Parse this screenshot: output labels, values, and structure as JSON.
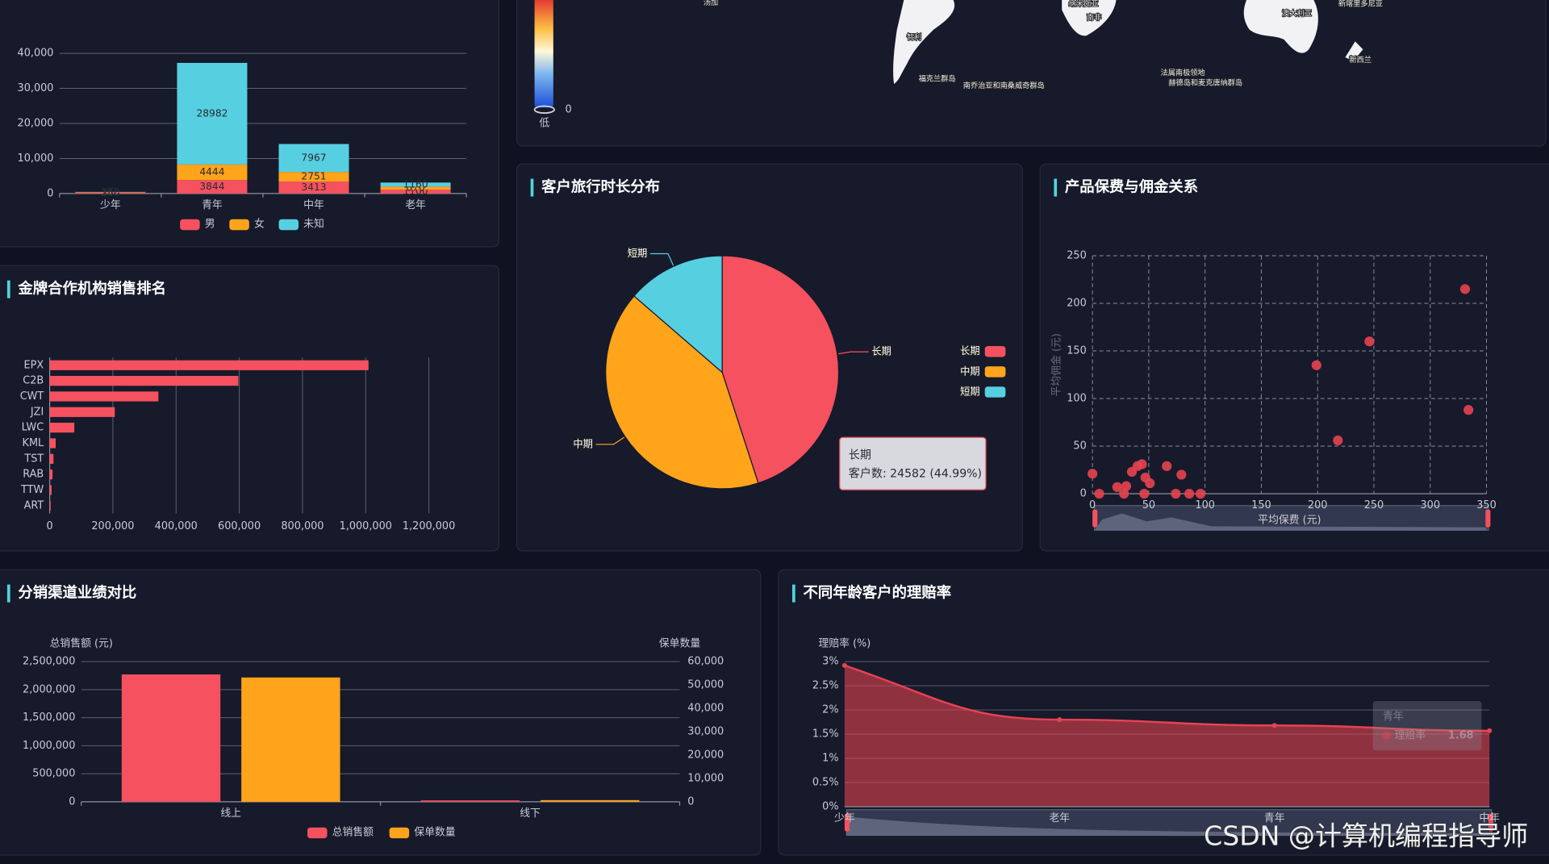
{
  "chart_data": [
    {
      "type": "bar",
      "stacked": true,
      "categories": [
        "少年",
        "青年",
        "中年",
        "老年"
      ],
      "series": [
        {
          "name": "男",
          "color": "#f5515f",
          "values": [
            260,
            3844,
            3413,
            1100
          ]
        },
        {
          "name": "女",
          "color": "#ffa41b",
          "values": [
            150,
            4444,
            2751,
            870
          ]
        },
        {
          "name": "未知",
          "color": "#56cfe1",
          "values": [
            60,
            28982,
            7967,
            1160
          ]
        }
      ],
      "ylim": [
        0,
        40000
      ],
      "yticks": [
        0,
        {
          "value": 10000,
          "label": "10,000"
        },
        {
          "value": 20000,
          "label": "20,000"
        },
        {
          "value": 30000,
          "label": "30,000"
        },
        {
          "value": 40000,
          "label": "40,000"
        }
      ],
      "grid": true,
      "legend": "bottom"
    },
    {
      "type": "bar",
      "horizontal": true,
      "title": "金牌合作机构销售排名",
      "categories": [
        "EPX",
        "C2B",
        "CWT",
        "JZI",
        "LWC",
        "KML",
        "TST",
        "RAB",
        "TTW",
        "ART"
      ],
      "values": [
        1009000,
        597000,
        344000,
        206000,
        78000,
        19000,
        12000,
        9000,
        6000,
        3000
      ],
      "color": "#f5515f",
      "xlim": [
        0,
        1200000
      ],
      "xticks": [
        0,
        {
          "value": 200000,
          "label": "200,000"
        },
        {
          "value": 400000,
          "label": "400,000"
        },
        {
          "value": 600000,
          "label": "600,000"
        },
        {
          "value": 800000,
          "label": "800,000"
        },
        {
          "value": 1000000,
          "label": "1,000,000"
        },
        {
          "value": 1200000,
          "label": "1,200,000"
        }
      ],
      "grid": true
    },
    {
      "type": "pie",
      "title": "客户旅行时长分布",
      "categories": [
        "长期",
        "中期",
        "短期"
      ],
      "values": [
        24582,
        22600,
        7457
      ],
      "colors": [
        "#f5515f",
        "#ffa41b",
        "#56cfe1"
      ],
      "legend": "right",
      "tooltip": {
        "title": "长期",
        "text": "客户数: 24582 (44.99%)"
      }
    },
    {
      "type": "scatter",
      "title": "产品保费与佣金关系",
      "x_label": "平均保费 (元)",
      "y_label": "平均佣金 (元)",
      "x": [
        0,
        6,
        22,
        30,
        28,
        35,
        40,
        44,
        46,
        47,
        51,
        66,
        74,
        79,
        86,
        96,
        199,
        218,
        246,
        331,
        334
      ],
      "values": [
        21,
        0,
        7,
        8,
        0,
        23,
        29,
        31,
        0,
        17,
        11,
        29,
        0,
        20,
        0,
        0,
        135,
        56,
        160,
        215,
        88
      ],
      "color": "#e8434f",
      "xlim": [
        0,
        350
      ],
      "xticks": [
        0,
        50,
        100,
        150,
        200,
        250,
        300,
        350
      ],
      "ylim": [
        0,
        250
      ],
      "yticks": [
        0,
        50,
        100,
        150,
        200,
        250
      ],
      "grid": true
    },
    {
      "type": "bar",
      "title": "分销渠道业绩对比",
      "categories": [
        "线上",
        "线下"
      ],
      "y_label": "总销售额 (元)",
      "y2_label": "保单数量",
      "series": [
        {
          "name": "总销售额",
          "color": "#f5515f",
          "values": [
            2271000,
            25000
          ]
        },
        {
          "name": "保单数量",
          "color": "#ffa41b",
          "axis": "y2",
          "values": [
            53200,
            700
          ]
        }
      ],
      "ylim": [
        0,
        2500000
      ],
      "yticks": [
        0,
        {
          "value": 500000,
          "label": "500,000"
        },
        {
          "value": 1000000,
          "label": "1,000,000"
        },
        {
          "value": 1500000,
          "label": "1,500,000"
        },
        {
          "value": 2000000,
          "label": "2,000,000"
        },
        {
          "value": 2500000,
          "label": "2,500,000"
        }
      ],
      "y2lim": [
        0,
        60000
      ],
      "y2ticks": [
        0,
        {
          "value": 10000,
          "label": "10,000"
        },
        {
          "value": 20000,
          "label": "20,000"
        },
        {
          "value": 30000,
          "label": "30,000"
        },
        {
          "value": 40000,
          "label": "40,000"
        },
        {
          "value": 50000,
          "label": "50,000"
        },
        {
          "value": 60000,
          "label": "60,000"
        }
      ],
      "grid": true,
      "legend": "bottom"
    },
    {
      "type": "line",
      "area": true,
      "title": "不同年龄客户的理赔率",
      "y_label": "理赔率 (%)",
      "categories": [
        "少年",
        "老年",
        "青年",
        "中年"
      ],
      "series": [
        {
          "name": "理赔率",
          "color": "#e8434f",
          "values": [
            2.92,
            1.8,
            1.68,
            1.57
          ]
        }
      ],
      "ylim": [
        0,
        3
      ],
      "yticks": [
        {
          "value": 0,
          "label": "0%"
        },
        {
          "value": 0.5,
          "label": "0.5%"
        },
        {
          "value": 1,
          "label": "1%"
        },
        {
          "value": 1.5,
          "label": "1.5%"
        },
        {
          "value": 2,
          "label": "2%"
        },
        {
          "value": 2.5,
          "label": "2.5%"
        },
        {
          "value": 3,
          "label": "3%"
        }
      ],
      "grid": true,
      "tooltip": {
        "title": "青年",
        "name": "理赔率",
        "value": 1.68
      }
    }
  ],
  "map": {
    "visual_map": {
      "min": 0,
      "min_label": "低"
    },
    "labels": [
      "汤加",
      "智利",
      "福克兰群岛",
      "南乔治亚和南桑威奇群岛",
      "纳米比亚",
      "南非",
      "法属南极领地",
      "赫德岛和麦克唐纳群岛",
      "澳大利亚",
      "新喀里多尼亚",
      "新西兰"
    ]
  },
  "watermark": "CSDN @计算机编程指导师"
}
